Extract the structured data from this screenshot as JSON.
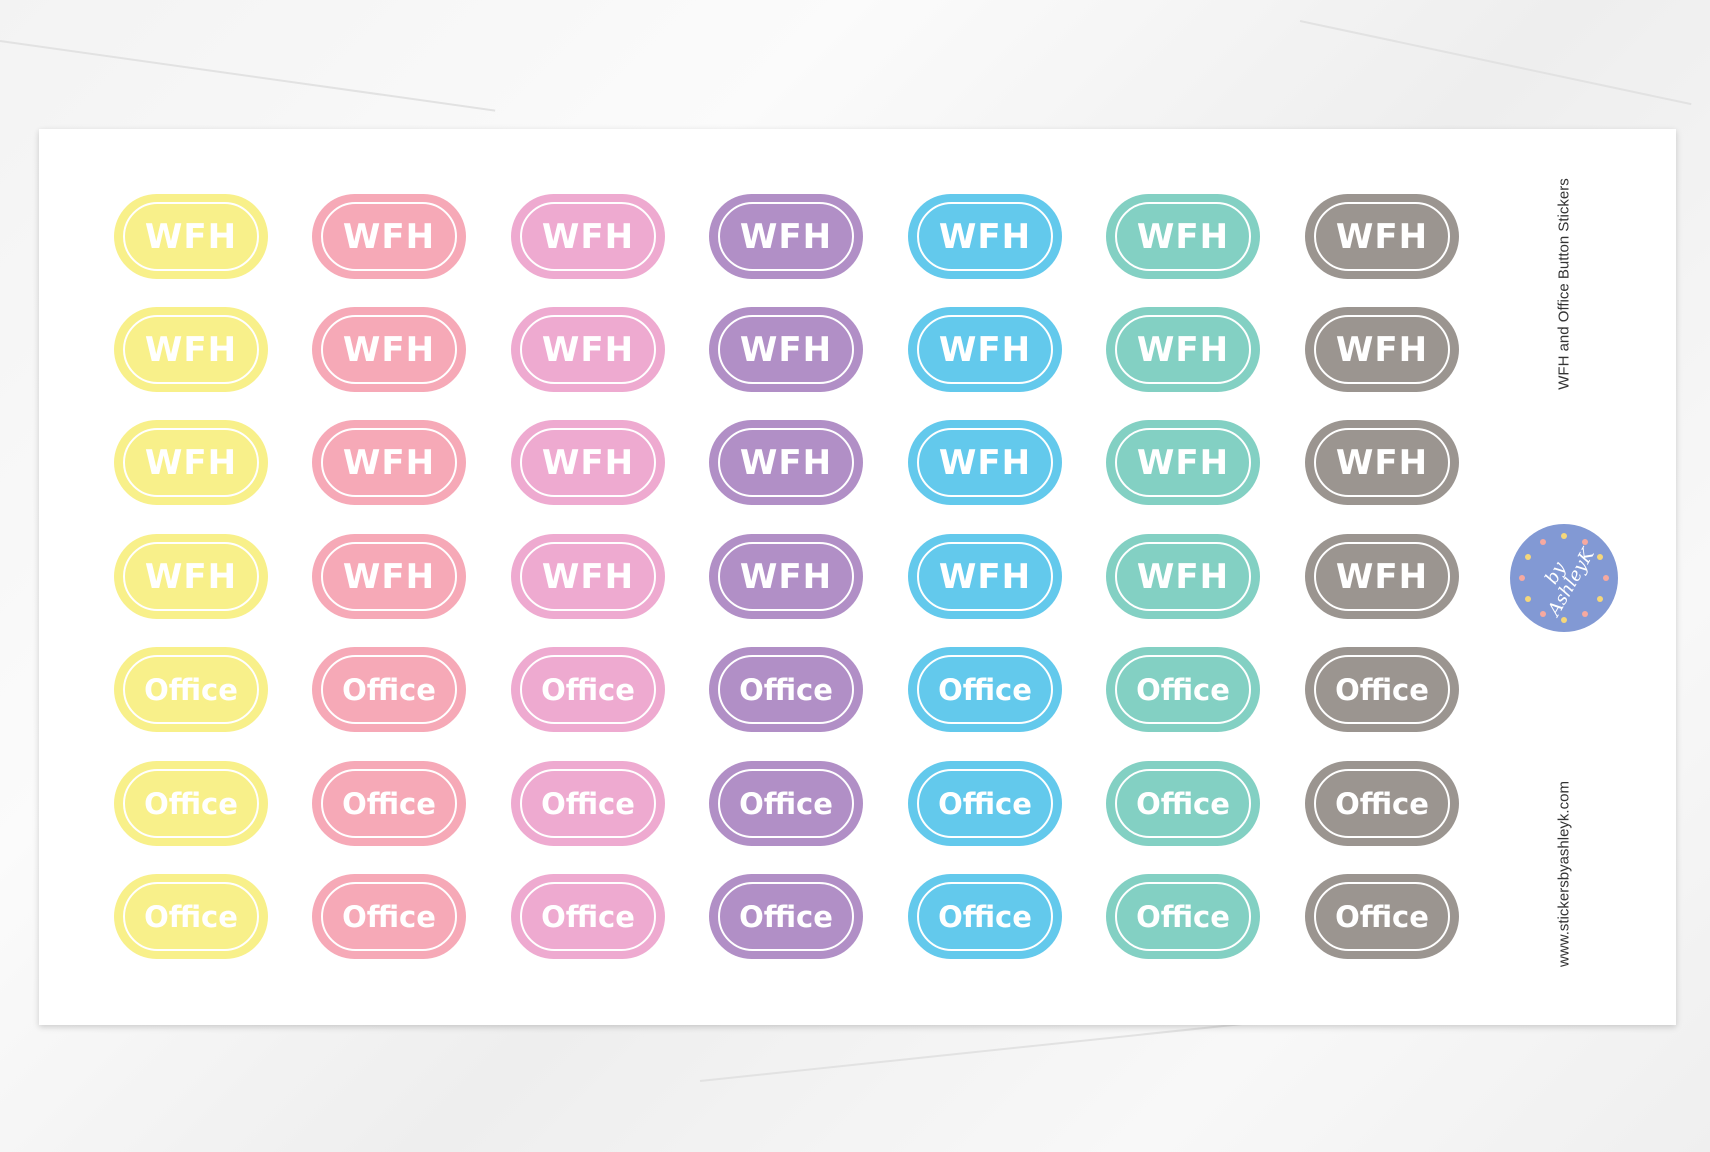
{
  "sheet": {
    "title": "WFH and Office  Button Stickers",
    "website": "www.stickersbyashleyk.com",
    "logo": {
      "line1": "by",
      "line2": "AshleyK"
    }
  },
  "colors": [
    "#f8f08a",
    "#f6a9b7",
    "#eeaad0",
    "#b18fc6",
    "#63c9ec",
    "#83d0c3",
    "#9b9590"
  ],
  "rows": [
    {
      "label": "WFH",
      "type": "wfh"
    },
    {
      "label": "WFH",
      "type": "wfh"
    },
    {
      "label": "WFH",
      "type": "wfh"
    },
    {
      "label": "WFH",
      "type": "wfh"
    },
    {
      "label": "Office",
      "type": "office"
    },
    {
      "label": "Office",
      "type": "office"
    },
    {
      "label": "Office",
      "type": "office"
    }
  ]
}
